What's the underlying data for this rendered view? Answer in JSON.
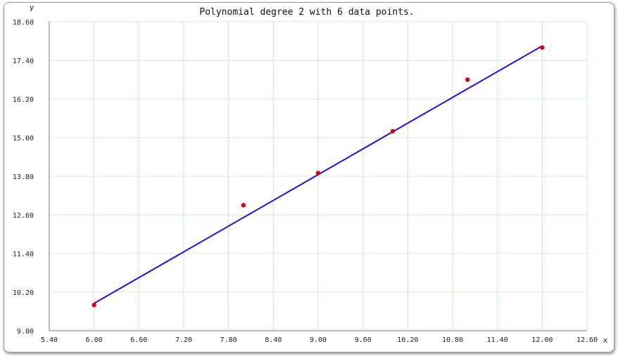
{
  "chart_data": {
    "type": "scatter",
    "title": "Polynomial degree 2 with 6 data points.",
    "xlabel": "x",
    "ylabel": "y",
    "xlim": [
      5.4,
      12.6
    ],
    "ylim": [
      9.0,
      18.6
    ],
    "x_ticks": [
      "5.40",
      "6.00",
      "6.60",
      "7.20",
      "7.80",
      "8.40",
      "9.00",
      "9.60",
      "10.20",
      "10.80",
      "11.40",
      "12.00",
      "12.60"
    ],
    "y_ticks": [
      "9.00",
      "10.20",
      "11.40",
      "12.60",
      "13.80",
      "15.00",
      "16.20",
      "17.40",
      "18.60"
    ],
    "grid": true,
    "series": [
      {
        "kind": "points",
        "color": "#e00000",
        "x": [
          6.0,
          8.0,
          9.0,
          10.0,
          11.0,
          12.0
        ],
        "y": [
          9.8,
          12.9,
          13.9,
          15.2,
          16.8,
          17.8
        ]
      },
      {
        "kind": "fit-line",
        "color": "#3300ee",
        "x": [
          6.0,
          12.0
        ],
        "y": [
          9.85,
          17.85
        ]
      }
    ],
    "grid_color": "#c8ecc8"
  }
}
